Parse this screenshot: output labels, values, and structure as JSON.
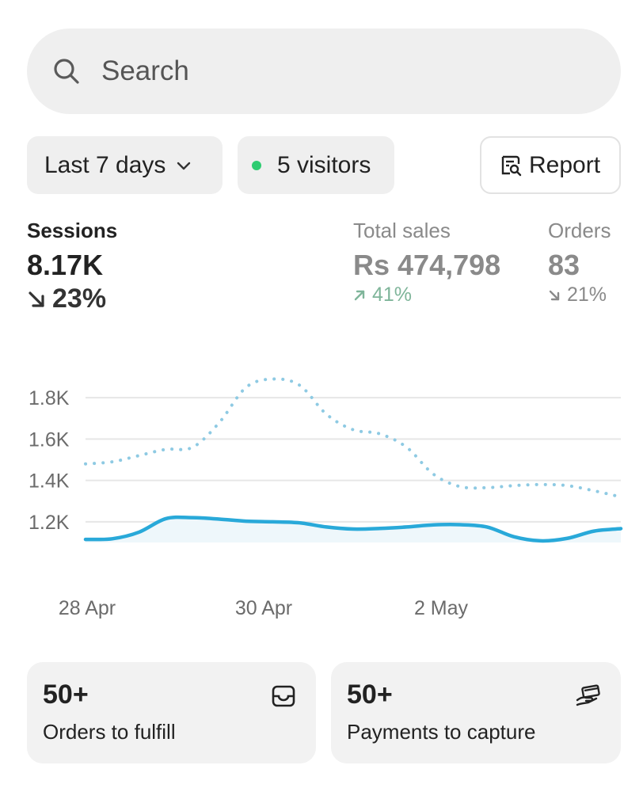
{
  "search": {
    "placeholder": "Search",
    "icon": "search-icon"
  },
  "filters": {
    "date_range": "Last 7 days",
    "visitors": "5 visitors",
    "visitors_dot_color": "#2ecc71",
    "report": "Report"
  },
  "metrics": {
    "sessions": {
      "label": "Sessions",
      "value": "8.17K",
      "delta": "23%",
      "direction": "down"
    },
    "total_sales": {
      "label": "Total sales",
      "value": "Rs 474,798",
      "delta": "41%",
      "direction": "up",
      "delta_color": "#7fb59a"
    },
    "orders": {
      "label": "Orders",
      "value": "83",
      "delta": "21%",
      "direction": "down"
    }
  },
  "chart_data": {
    "type": "line",
    "x": [
      "27.9 Apr",
      "28.1 Apr",
      "28.5 Apr",
      "28.9 Apr",
      "29.2 Apr",
      "29.5 Apr",
      "29.8 Apr",
      "30 Apr",
      "30.3 Apr",
      "30.7 Apr",
      "1 May",
      "1.3 May",
      "1.6 May",
      "1.9 May",
      "2.1 May",
      "2.4 May",
      "2.7 May",
      "3 May",
      "3.3 May",
      "3.6 May",
      "3.9 May"
    ],
    "x_labels": [
      "28 Apr",
      "30 Apr",
      "2 May"
    ],
    "y_ticks": [
      "1.8K",
      "1.6K",
      "1.4K",
      "1.2K"
    ],
    "ylim": [
      1100,
      1900
    ],
    "grid": true,
    "series": [
      {
        "style": "dotted",
        "color": "#8ecae3",
        "values": [
          1480,
          1490,
          1520,
          1550,
          1560,
          1680,
          1850,
          1890,
          1860,
          1720,
          1645,
          1625,
          1560,
          1430,
          1370,
          1365,
          1375,
          1380,
          1375,
          1350,
          1320
        ]
      },
      {
        "style": "solid",
        "color": "#29a9d9",
        "values": [
          1115,
          1118,
          1150,
          1215,
          1220,
          1213,
          1203,
          1200,
          1195,
          1175,
          1165,
          1168,
          1175,
          1185,
          1186,
          1175,
          1128,
          1108,
          1120,
          1155,
          1167
        ]
      }
    ]
  },
  "cards": {
    "fulfill": {
      "count": "50+",
      "label": "Orders to fulfill",
      "icon": "inbox-icon"
    },
    "payments": {
      "count": "50+",
      "label": "Payments to capture",
      "icon": "hand-payment-icon"
    }
  }
}
